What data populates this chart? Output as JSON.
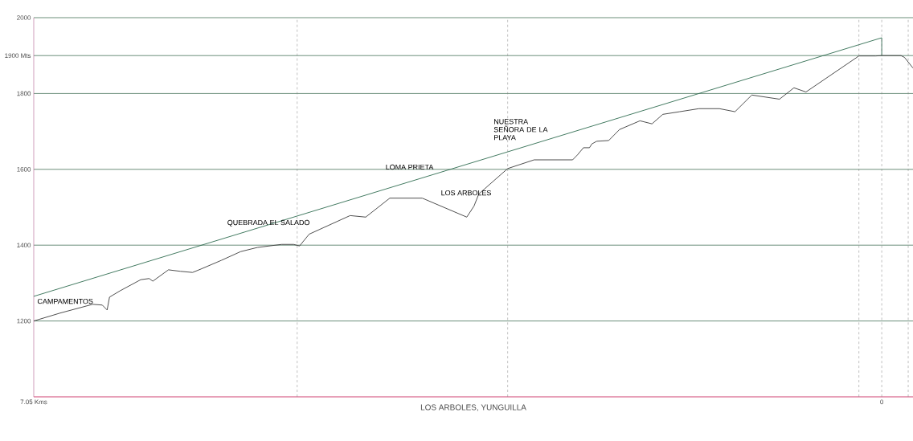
{
  "chart_data": {
    "type": "line",
    "xlabel": "LOS ARBOLES, YUNGUILLA",
    "xlim": [
      7.05,
      -0.26
    ],
    "xticks": [
      {
        "value": 7.05,
        "label": "7.05 Kms"
      },
      0
    ],
    "ylim": [
      1000,
      2000
    ],
    "yticks": [
      1200,
      1400,
      1600,
      1800,
      {
        "value": 1900,
        "label": "1900 Mts"
      },
      2000
    ],
    "grid": "y",
    "marker": "none",
    "line_style": "solid",
    "series": [
      {
        "color": "#3a3a3a",
        "x": [
          7.05,
          6.83,
          6.56,
          6.48,
          6.44,
          6.42,
          6.33,
          6.16,
          6.09,
          6.06,
          5.93,
          5.83,
          5.73,
          5.66,
          5.49,
          5.33,
          5.19,
          4.99,
          4.89,
          4.84,
          4.76,
          4.42,
          4.29,
          4.09,
          3.82,
          3.45,
          3.39,
          3.35,
          3.11,
          2.89,
          2.57,
          2.53,
          2.48,
          2.43,
          2.41,
          2.37,
          2.27,
          2.18,
          2.01,
          1.91,
          1.82,
          1.68,
          1.52,
          1.35,
          1.22,
          1.08,
          0.85,
          0.73,
          0.63,
          0.19,
          0.05,
          0,
          -0.16,
          -0.19,
          -0.26
        ],
        "values": [
          1200,
          1221,
          1244,
          1242,
          1229,
          1263,
          1280,
          1309,
          1312,
          1305,
          1335,
          1331,
          1328,
          1337,
          1360,
          1383,
          1394,
          1402,
          1402,
          1398,
          1429,
          1478,
          1474,
          1524,
          1524,
          1474,
          1503,
          1535,
          1602,
          1625,
          1625,
          1638,
          1657,
          1657,
          1667,
          1674,
          1676,
          1705,
          1728,
          1720,
          1745,
          1752,
          1760,
          1760,
          1752,
          1796,
          1785,
          1815,
          1804,
          1899,
          1899,
          1900,
          1900,
          1895,
          1867
        ]
      },
      {
        "color": "#2e6b4f",
        "x": [
          7.05,
          0,
          0
        ],
        "values": [
          1265,
          1947,
          1900
        ]
      }
    ],
    "ref_lines": [
      {
        "axis": "x",
        "value": 4.86,
        "color": "#808080",
        "line_style": "dashed"
      },
      {
        "axis": "x",
        "value": 3.11,
        "color": "#808080",
        "line_style": "dashed"
      },
      {
        "axis": "x",
        "value": 0.19,
        "color": "#808080",
        "line_style": "dashed"
      },
      {
        "axis": "x",
        "value": 0,
        "color": "#808080",
        "line_style": "dashed"
      },
      {
        "axis": "x",
        "value": -0.22,
        "color": "#808080",
        "line_style": "dashed"
      }
    ],
    "annotations": [
      "CAMPAMENTOS",
      "QUEBRADA EL SALADO",
      "LOMA PRIETA",
      "LOS ARBOLES",
      "NUESTRA SEÑORA DE LA PLAYA"
    ]
  }
}
